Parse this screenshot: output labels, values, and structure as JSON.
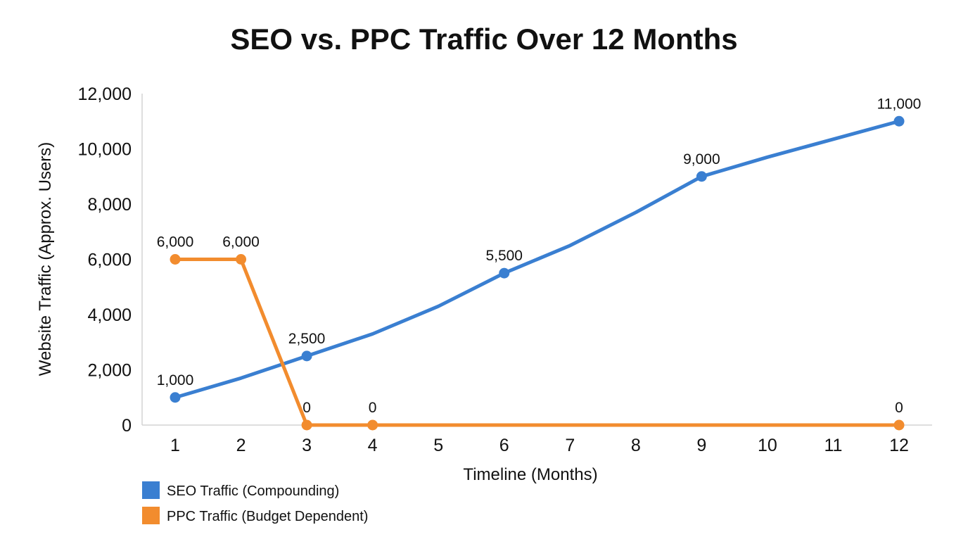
{
  "chart_data": {
    "type": "line",
    "title": "SEO vs. PPC Traffic Over 12 Months",
    "xlabel": "Timeline (Months)",
    "ylabel": "Website Traffic (Approx. Users)",
    "x": [
      1,
      2,
      3,
      4,
      5,
      6,
      7,
      8,
      9,
      10,
      11,
      12
    ],
    "x_tick_labels": [
      "1",
      "2",
      "3",
      "4",
      "5",
      "6",
      "7",
      "8",
      "9",
      "10",
      "11",
      "12"
    ],
    "y_tick_labels": [
      "0",
      "2,000",
      "4,000",
      "6,000",
      "8,000",
      "10,000",
      "12,000"
    ],
    "y_ticks": [
      0,
      2000,
      4000,
      6000,
      8000,
      10000,
      12000
    ],
    "xlim": [
      1,
      12
    ],
    "ylim": [
      0,
      12000
    ],
    "grid": false,
    "legend_position": "bottom-left",
    "series": [
      {
        "name": "SEO Traffic (Compounding)",
        "color": "#3a7fd1",
        "values": [
          1000,
          1700,
          2500,
          3300,
          4300,
          5500,
          6500,
          7700,
          9000,
          9700,
          10350,
          11000
        ],
        "marker_x": [
          1,
          3,
          6,
          9,
          12
        ],
        "labels": [
          {
            "x": 1,
            "text": "1,000"
          },
          {
            "x": 3,
            "text": "2,500"
          },
          {
            "x": 6,
            "text": "5,500"
          },
          {
            "x": 9,
            "text": "9,000"
          },
          {
            "x": 12,
            "text": "11,000"
          }
        ]
      },
      {
        "name": "PPC Traffic (Budget Dependent)",
        "color": "#f28c2e",
        "values": [
          6000,
          6000,
          0,
          0,
          0,
          0,
          0,
          0,
          0,
          0,
          0,
          0
        ],
        "marker_x": [
          1,
          2,
          3,
          4,
          12
        ],
        "labels": [
          {
            "x": 1,
            "text": "6,000"
          },
          {
            "x": 2,
            "text": "6,000"
          },
          {
            "x": 3,
            "text": "0"
          },
          {
            "x": 4,
            "text": "0"
          },
          {
            "x": 12,
            "text": "0"
          }
        ]
      }
    ]
  }
}
